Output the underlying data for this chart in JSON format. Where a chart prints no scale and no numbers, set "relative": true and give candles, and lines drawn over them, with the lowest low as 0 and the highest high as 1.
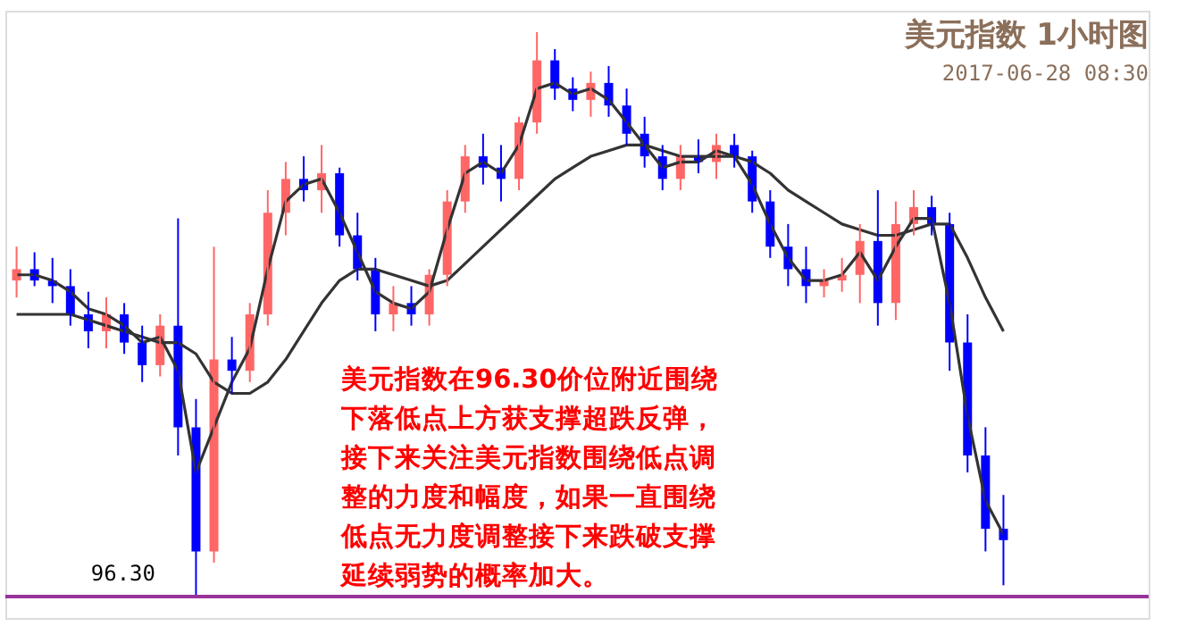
{
  "chart_data": {
    "type": "candlestick",
    "title": "美元指数 1小时图",
    "subtitle": "2017-06-28 08:30",
    "relative": true,
    "grid": false,
    "tick_labels": false,
    "categories": [
      null,
      null,
      null,
      null,
      null,
      null,
      null,
      null,
      null,
      null,
      null,
      null,
      null,
      null,
      null,
      null,
      null,
      null,
      null,
      null,
      null,
      null,
      null,
      null,
      null,
      null,
      null,
      null,
      null,
      null,
      null,
      null,
      null,
      null,
      null,
      null,
      null,
      null,
      null,
      null,
      null,
      null,
      null,
      null,
      null,
      null,
      null,
      null,
      null,
      null,
      null,
      null,
      null,
      null,
      null,
      null
    ],
    "ohlc": [
      [
        0.56,
        0.62,
        0.53,
        0.58
      ],
      [
        0.58,
        0.61,
        0.55,
        0.56
      ],
      [
        0.56,
        0.6,
        0.52,
        0.55
      ],
      [
        0.55,
        0.58,
        0.48,
        0.5
      ],
      [
        0.5,
        0.54,
        0.44,
        0.47
      ],
      [
        0.47,
        0.53,
        0.44,
        0.5
      ],
      [
        0.5,
        0.52,
        0.43,
        0.45
      ],
      [
        0.45,
        0.48,
        0.38,
        0.41
      ],
      [
        0.41,
        0.5,
        0.39,
        0.48
      ],
      [
        0.48,
        0.67,
        0.25,
        0.3
      ],
      [
        0.3,
        0.35,
        0.0,
        0.08
      ],
      [
        0.08,
        0.62,
        0.06,
        0.42
      ],
      [
        0.42,
        0.46,
        0.36,
        0.4
      ],
      [
        0.4,
        0.52,
        0.38,
        0.5
      ],
      [
        0.5,
        0.72,
        0.48,
        0.68
      ],
      [
        0.68,
        0.77,
        0.64,
        0.74
      ],
      [
        0.74,
        0.78,
        0.7,
        0.72
      ],
      [
        0.72,
        0.8,
        0.68,
        0.75
      ],
      [
        0.75,
        0.76,
        0.62,
        0.64
      ],
      [
        0.64,
        0.68,
        0.56,
        0.58
      ],
      [
        0.58,
        0.6,
        0.47,
        0.5
      ],
      [
        0.5,
        0.55,
        0.47,
        0.52
      ],
      [
        0.52,
        0.55,
        0.48,
        0.5
      ],
      [
        0.5,
        0.58,
        0.48,
        0.57
      ],
      [
        0.57,
        0.72,
        0.55,
        0.7
      ],
      [
        0.7,
        0.8,
        0.68,
        0.78
      ],
      [
        0.78,
        0.82,
        0.73,
        0.76
      ],
      [
        0.76,
        0.8,
        0.7,
        0.74
      ],
      [
        0.74,
        0.85,
        0.72,
        0.84
      ],
      [
        0.84,
        1.0,
        0.82,
        0.95
      ],
      [
        0.95,
        0.97,
        0.88,
        0.9
      ],
      [
        0.9,
        0.92,
        0.86,
        0.88
      ],
      [
        0.88,
        0.93,
        0.85,
        0.91
      ],
      [
        0.91,
        0.94,
        0.85,
        0.87
      ],
      [
        0.87,
        0.9,
        0.8,
        0.82
      ],
      [
        0.82,
        0.85,
        0.76,
        0.78
      ],
      [
        0.78,
        0.8,
        0.72,
        0.74
      ],
      [
        0.74,
        0.8,
        0.72,
        0.78
      ],
      [
        0.78,
        0.81,
        0.75,
        0.77
      ],
      [
        0.77,
        0.82,
        0.74,
        0.8
      ],
      [
        0.8,
        0.82,
        0.76,
        0.78
      ],
      [
        0.78,
        0.79,
        0.68,
        0.7
      ],
      [
        0.7,
        0.72,
        0.6,
        0.62
      ],
      [
        0.62,
        0.66,
        0.55,
        0.58
      ],
      [
        0.58,
        0.62,
        0.52,
        0.55
      ],
      [
        0.55,
        0.58,
        0.53,
        0.56
      ],
      [
        0.56,
        0.6,
        0.54,
        0.57
      ],
      [
        0.57,
        0.66,
        0.52,
        0.63
      ],
      [
        0.63,
        0.72,
        0.48,
        0.52
      ],
      [
        0.52,
        0.7,
        0.49,
        0.66
      ],
      [
        0.66,
        0.72,
        0.64,
        0.69
      ],
      [
        0.69,
        0.71,
        0.64,
        0.66
      ],
      [
        0.66,
        0.68,
        0.4,
        0.45
      ],
      [
        0.45,
        0.5,
        0.22,
        0.25
      ],
      [
        0.25,
        0.3,
        0.08,
        0.12
      ],
      [
        0.12,
        0.18,
        0.02,
        0.1
      ]
    ],
    "colors": [
      "#ff6666",
      "#0000ff",
      "#0000ff",
      "#0000ff",
      "#0000ff",
      "#ff6666",
      "#0000ff",
      "#0000ff",
      "#ff6666",
      "#0000ff",
      "#0000ff",
      "#ff6666",
      "#0000ff",
      "#ff6666",
      "#ff6666",
      "#ff6666",
      "#0000ff",
      "#ff6666",
      "#0000ff",
      "#0000ff",
      "#0000ff",
      "#ff6666",
      "#0000ff",
      "#ff6666",
      "#ff6666",
      "#ff6666",
      "#0000ff",
      "#0000ff",
      "#ff6666",
      "#ff6666",
      "#0000ff",
      "#0000ff",
      "#ff6666",
      "#0000ff",
      "#0000ff",
      "#0000ff",
      "#0000ff",
      "#ff6666",
      "#0000ff",
      "#ff6666",
      "#0000ff",
      "#0000ff",
      "#0000ff",
      "#0000ff",
      "#0000ff",
      "#ff6666",
      "#ff6666",
      "#ff6666",
      "#0000ff",
      "#ff6666",
      "#ff6666",
      "#0000ff",
      "#0000ff",
      "#0000ff",
      "#0000ff",
      "#0000ff"
    ],
    "series": [
      {
        "type": "line",
        "color": "#333333",
        "values": [
          0.57,
          0.57,
          0.56,
          0.54,
          0.51,
          0.5,
          0.48,
          0.45,
          0.46,
          0.4,
          0.22,
          0.3,
          0.38,
          0.44,
          0.58,
          0.7,
          0.73,
          0.74,
          0.68,
          0.61,
          0.54,
          0.52,
          0.51,
          0.54,
          0.65,
          0.75,
          0.77,
          0.75,
          0.8,
          0.9,
          0.91,
          0.89,
          0.9,
          0.88,
          0.84,
          0.8,
          0.76,
          0.77,
          0.77,
          0.79,
          0.78,
          0.73,
          0.66,
          0.6,
          0.56,
          0.56,
          0.57,
          0.61,
          0.56,
          0.62,
          0.67,
          0.67,
          0.52,
          0.32,
          0.17,
          0.11
        ]
      },
      {
        "type": "line",
        "color": "#333333",
        "values": [
          0.5,
          0.5,
          0.5,
          0.5,
          0.49,
          0.48,
          0.47,
          0.46,
          0.45,
          0.45,
          0.43,
          0.38,
          0.36,
          0.36,
          0.38,
          0.42,
          0.47,
          0.52,
          0.56,
          0.58,
          0.58,
          0.57,
          0.56,
          0.55,
          0.56,
          0.59,
          0.62,
          0.65,
          0.68,
          0.71,
          0.74,
          0.76,
          0.78,
          0.79,
          0.8,
          0.8,
          0.79,
          0.78,
          0.78,
          0.78,
          0.78,
          0.77,
          0.75,
          0.72,
          0.7,
          0.68,
          0.66,
          0.65,
          0.64,
          0.64,
          0.65,
          0.66,
          0.66,
          0.6,
          0.53,
          0.47
        ]
      }
    ],
    "ref_lines": [
      {
        "axis": "y",
        "value": 0,
        "color": "#993399"
      }
    ],
    "annotations": [
      "96.30",
      "美元指数在96.30价位附近围绕",
      "下落低点上方获支撑超跌反弹，",
      "接下来关注美元指数围绕低点调",
      "整的力度和幅度，如果一直围绕",
      "低点无力度调整接下来跌破支撑",
      "延续弱势的概率加大。"
    ]
  }
}
